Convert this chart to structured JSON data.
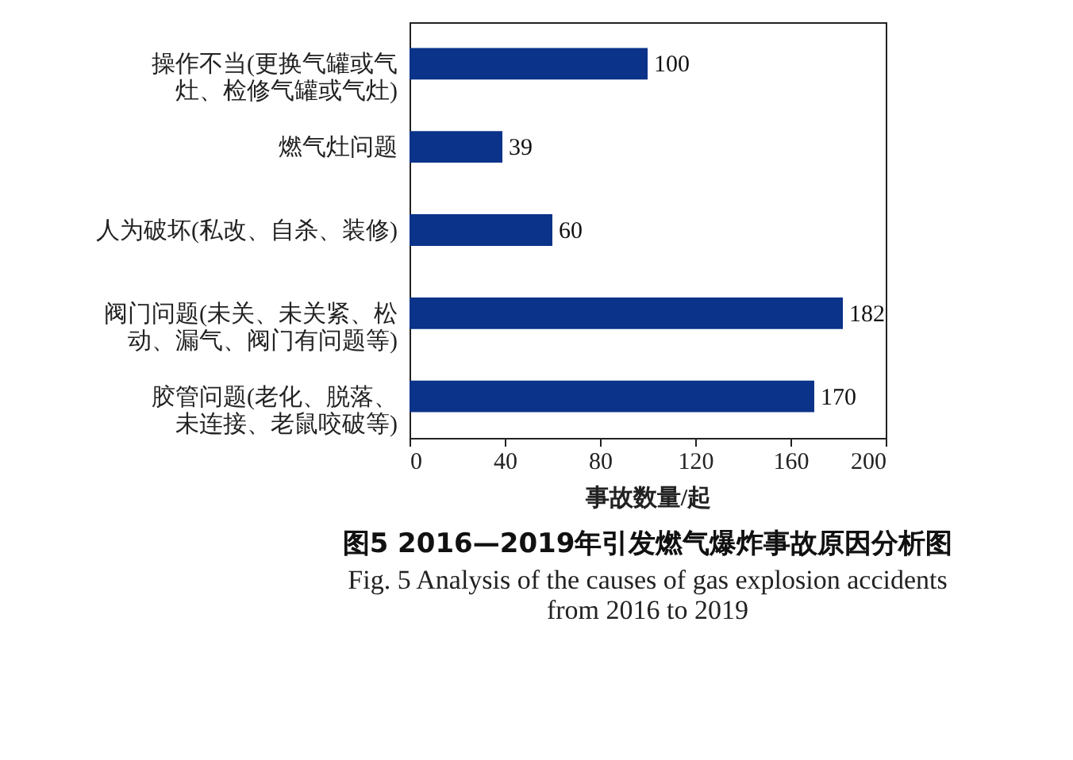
{
  "chart_data": {
    "type": "bar",
    "orientation": "horizontal",
    "title": "图5  2016—2019年引发燃气爆炸事故原因分析图",
    "subtitle": "Fig. 5  Analysis of the causes of gas explosion accidents from 2016 to 2019",
    "xlabel": "事故数量/起",
    "categories": [
      "操作不当(更换气罐或气灶、检修气罐或气灶)",
      "燃气灶问题",
      "人为破坏(私改、自杀、装修)",
      "阀门问题(未关、未关紧、松动、漏气、阀门有问题等)",
      "胶管问题(老化、脱落、未连接、老鼠咬破等)"
    ],
    "values": [
      100,
      39,
      60,
      182,
      170
    ],
    "color": "#0a3389",
    "xlim": [
      0,
      200
    ],
    "xticks": [
      0,
      40,
      80,
      120,
      160,
      200
    ],
    "data_labels": true,
    "grid": false
  }
}
